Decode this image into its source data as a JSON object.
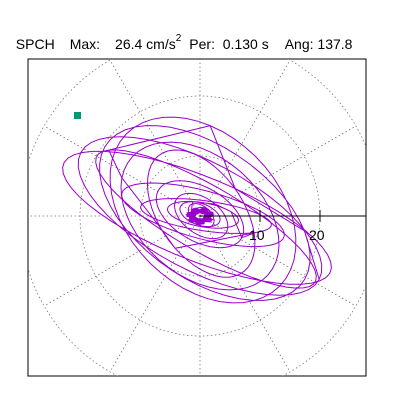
{
  "header": {
    "station": "SPCH",
    "max_label": "Max:",
    "max_value": "26.4",
    "max_unit": "cm/s",
    "max_unit_exp": "2",
    "per_label": "Per:",
    "per_value": "0.130 s",
    "ang_label": "Ang:",
    "ang_value": "137.8"
  },
  "plot": {
    "trace_color": "#9900cc",
    "marker_color": "#009977",
    "axis_color": "#000000",
    "grid_color": "#777777",
    "axis_tick_labels": [
      "10",
      "20"
    ],
    "grid_rings": [
      10,
      20,
      30
    ],
    "marker_shape": "square"
  }
}
